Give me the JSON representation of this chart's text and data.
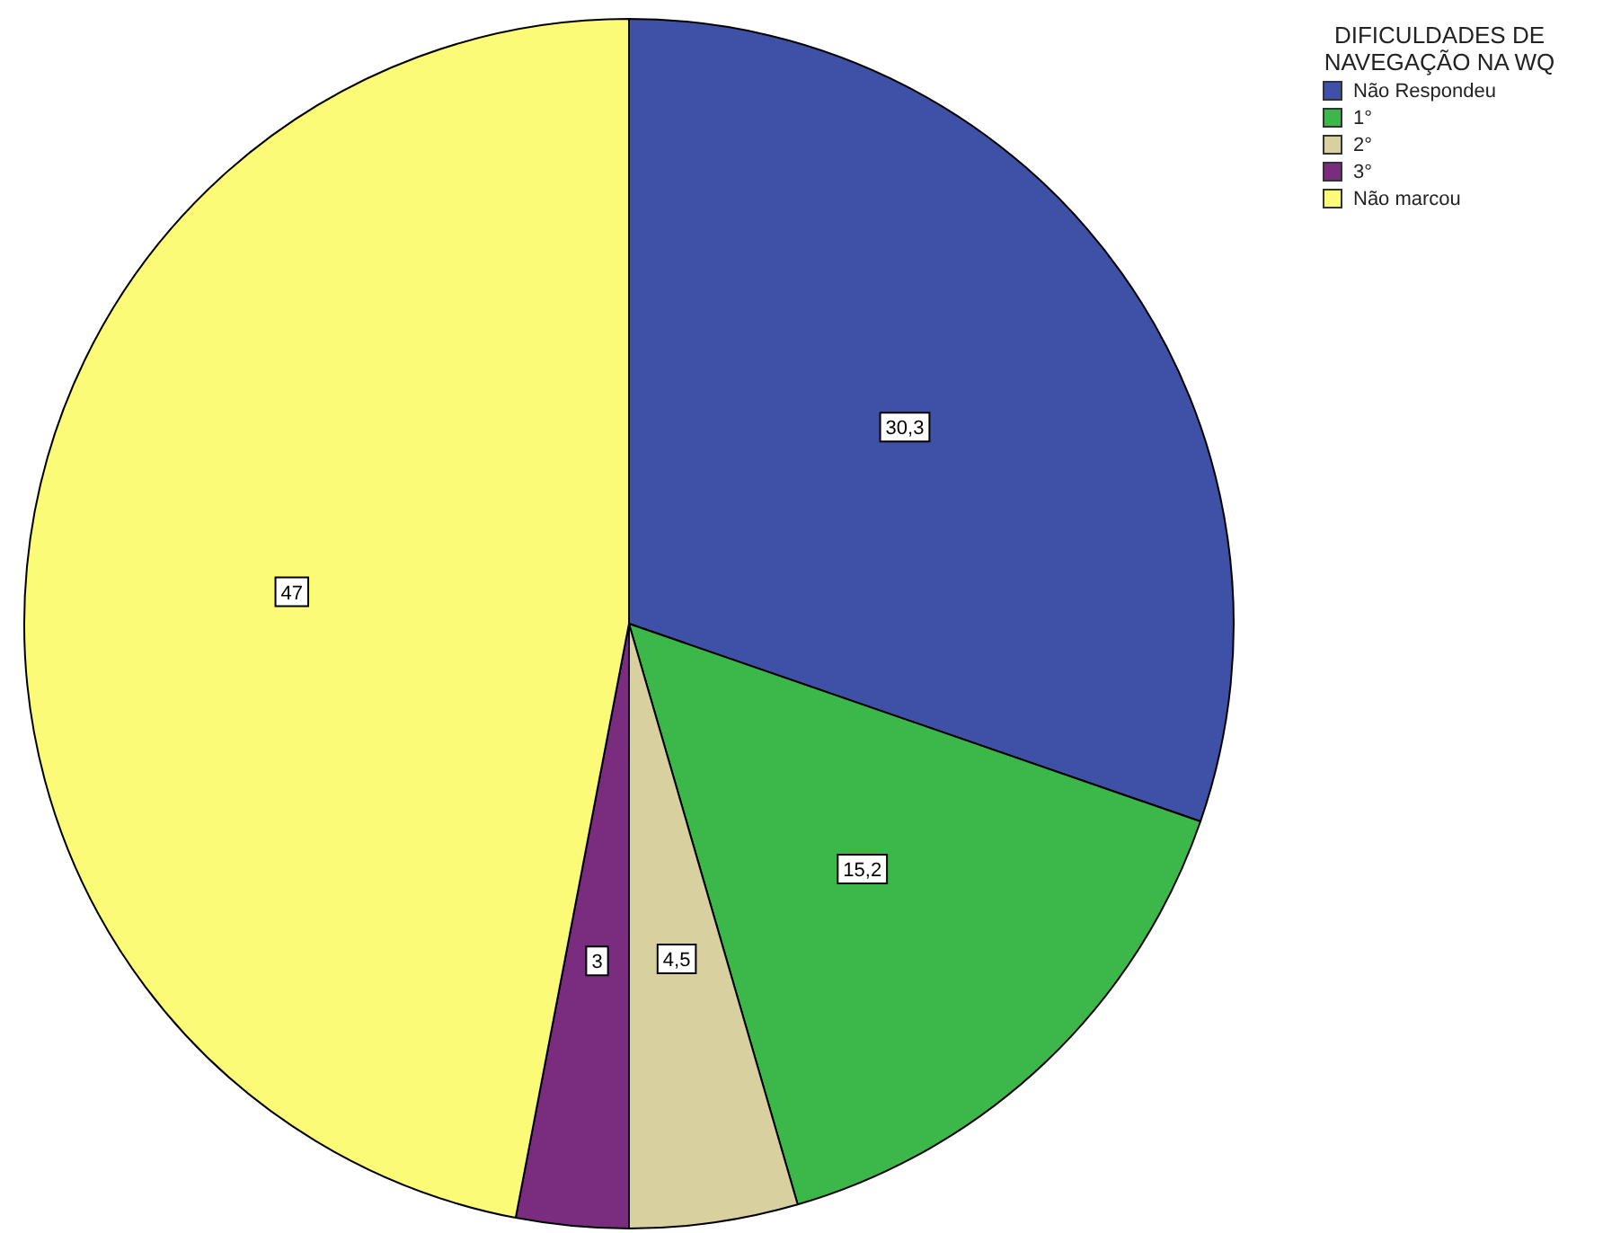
{
  "chart_data": {
    "type": "pie",
    "legend_title": "DIFICULDADES DE NAVEGAÇÃO NA WQ",
    "categories": [
      "Não Respondeu",
      "1°",
      "2°",
      "3°",
      "Não marcou"
    ],
    "values": [
      30.3,
      15.2,
      4.5,
      3,
      47
    ],
    "colors": [
      "#3f51a6",
      "#3cb84a",
      "#d8d09e",
      "#7a2c7e",
      "#fbfb78"
    ],
    "value_labels": [
      "30,3",
      "15,2",
      "4,5",
      "3",
      "47"
    ],
    "legend": "top right"
  }
}
